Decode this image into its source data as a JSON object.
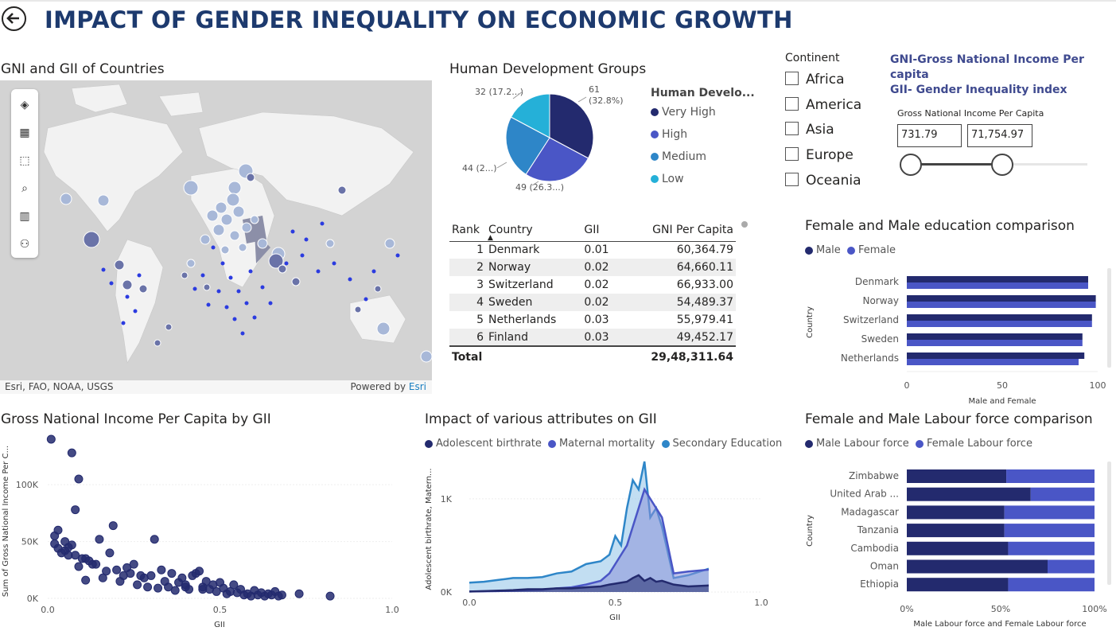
{
  "header": {
    "title": "IMPACT OF GENDER INEQUALITY ON ECONOMIC GROWTH"
  },
  "map": {
    "title": "GNI and GII of Countries",
    "attribution": "Esri, FAO, NOAA, USGS",
    "powered_by": "Powered by",
    "powered_brand": "Esri",
    "tools": [
      "layers-icon",
      "qr-icon",
      "select-rect-icon",
      "search-icon",
      "chart-icon",
      "person-icon"
    ]
  },
  "pie": {
    "title": "Human Development Groups",
    "legend_title": "Human Develo...",
    "slices": [
      {
        "label": "Very High",
        "value": 61,
        "display": "61",
        "pct": "(32.8%)",
        "color": "#232a6e"
      },
      {
        "label": "High",
        "value": 49,
        "display": "49 (26.3...)",
        "color": "#4a56c6"
      },
      {
        "label": "Medium",
        "value": 44,
        "display": "44 (2...)",
        "color": "#2e86c8"
      },
      {
        "label": "Low",
        "value": 32,
        "display": "32 (17.2...)",
        "color": "#25b0d8"
      }
    ]
  },
  "table": {
    "headers": [
      "Rank",
      "Country",
      "GII",
      "GNI Per Capita"
    ],
    "rows": [
      [
        "1",
        "Denmark",
        "0.01",
        "60,364.79"
      ],
      [
        "2",
        "Norway",
        "0.02",
        "64,660.11"
      ],
      [
        "3",
        "Switzerland",
        "0.02",
        "66,933.00"
      ],
      [
        "4",
        "Sweden",
        "0.02",
        "54,489.37"
      ],
      [
        "5",
        "Netherlands",
        "0.03",
        "55,979.41"
      ],
      [
        "6",
        "Finland",
        "0.03",
        "49,452.17"
      ]
    ],
    "total_label": "Total",
    "total_value": "29,48,311.64"
  },
  "slicer": {
    "title": "Continent",
    "items": [
      "Africa",
      "America",
      "Asia",
      "Europe",
      "Oceania"
    ]
  },
  "notes": {
    "line1": "GNI-Gross National Income Per capita",
    "line2": "GII- Gender Inequality index"
  },
  "range": {
    "label": "Gross National Income Per Capita",
    "min": "731.79",
    "max": "71,754.97",
    "fill_fraction": 0.76
  },
  "education": {
    "title": "Female and Male education comparison",
    "legend": [
      "Male",
      "Female"
    ],
    "ylabel": "Country",
    "xlabel": "Male and Female",
    "ticks": [
      "0",
      "50",
      "100"
    ]
  },
  "labour": {
    "title": "Female and Male Labour force comparison",
    "legend": [
      "Male Labour force",
      "Female Labour force"
    ],
    "ylabel": "Country",
    "xlabel": "Male Labour force and Female Labour force",
    "ticks": [
      "0%",
      "50%",
      "100%"
    ]
  },
  "scatter_text": {
    "title": "Gross National Income Per Capita by GII",
    "ylabel": "Sum of Gross National Income Per C...",
    "xlabel": "GII",
    "yticks": [
      "0K",
      "50K",
      "100K"
    ],
    "xticks": [
      "0.0",
      "0.5",
      "1.0"
    ]
  },
  "area_text": {
    "title": "Impact of various attributes on GII",
    "legend": [
      "Adolescent birthrate",
      "Maternal mortality",
      "Secondary  Education"
    ],
    "ylabel": "Adolescent birthrate, Matern...",
    "xlabel": "GII",
    "yticks": [
      "0K",
      "1K"
    ],
    "xticks": [
      "0.0",
      "0.5",
      "1.0"
    ]
  },
  "colors": {
    "dark": "#232a6e",
    "mid": "#4a56c6",
    "teal": "#2e86c8",
    "title": "#1d3a6e"
  },
  "chart_data": [
    {
      "type": "bar",
      "title": "Female and Male education comparison",
      "categories": [
        "Denmark",
        "Norway",
        "Switzerland",
        "Sweden",
        "Netherlands"
      ],
      "series": [
        {
          "name": "Male",
          "values": [
            95,
            99,
            97,
            92,
            93
          ]
        },
        {
          "name": "Female",
          "values": [
            95,
            99,
            97,
            92,
            90
          ]
        }
      ],
      "xlim": [
        0,
        100
      ]
    },
    {
      "type": "bar",
      "title": "Female and Male Labour force comparison",
      "categories": [
        "Zimbabwe",
        "United Arab ...",
        "Madagascar",
        "Tanzania",
        "Cambodia",
        "Oman",
        "Ethiopia"
      ],
      "series": [
        {
          "name": "Male Labour force",
          "values": [
            53,
            66,
            52,
            52,
            54,
            75,
            54
          ]
        },
        {
          "name": "Female Labour force",
          "values": [
            47,
            34,
            48,
            48,
            46,
            25,
            46
          ]
        }
      ],
      "xlim": [
        0,
        100
      ]
    },
    {
      "type": "scatter",
      "title": "Gross National Income Per Capita by GII",
      "x": [
        0.01,
        0.03,
        0.02,
        0.07,
        0.09,
        0.08,
        0.02,
        0.03,
        0.05,
        0.06,
        0.04,
        0.08,
        0.1,
        0.12,
        0.11,
        0.14,
        0.09,
        0.15,
        0.18,
        0.19,
        0.2,
        0.22,
        0.24,
        0.25,
        0.28,
        0.3,
        0.31,
        0.33,
        0.34,
        0.36,
        0.38,
        0.39,
        0.4,
        0.42,
        0.43,
        0.44,
        0.45,
        0.46,
        0.47,
        0.48,
        0.49,
        0.5,
        0.51,
        0.52,
        0.53,
        0.54,
        0.55,
        0.56,
        0.57,
        0.58,
        0.59,
        0.6,
        0.61,
        0.62,
        0.63,
        0.64,
        0.65,
        0.66,
        0.67,
        0.68,
        0.73,
        0.82,
        0.05,
        0.07,
        0.13,
        0.16,
        0.21,
        0.26,
        0.29,
        0.32,
        0.35,
        0.37,
        0.41,
        0.27,
        0.23,
        0.17,
        0.06,
        0.11,
        0.4,
        0.45
      ],
      "y": [
        140,
        60,
        55,
        128,
        105,
        78,
        48,
        44,
        42,
        45,
        40,
        38,
        35,
        33,
        35,
        30,
        28,
        52,
        40,
        64,
        25,
        20,
        22,
        30,
        18,
        20,
        52,
        25,
        15,
        22,
        14,
        18,
        12,
        20,
        22,
        24,
        10,
        15,
        8,
        12,
        6,
        14,
        9,
        4,
        6,
        12,
        5,
        8,
        3,
        4,
        2,
        7,
        3,
        5,
        2,
        4,
        3,
        6,
        2,
        3,
        4,
        2,
        50,
        47,
        30,
        18,
        15,
        12,
        10,
        9,
        10,
        7,
        8,
        20,
        27,
        24,
        38,
        16,
        10,
        8
      ],
      "xlim": [
        0,
        1.0
      ],
      "ylim": [
        0,
        140
      ]
    },
    {
      "type": "area",
      "title": "Impact of various attributes on GII",
      "x": [
        0.0,
        0.05,
        0.1,
        0.15,
        0.2,
        0.25,
        0.3,
        0.35,
        0.4,
        0.45,
        0.48,
        0.5,
        0.52,
        0.54,
        0.56,
        0.58,
        0.6,
        0.62,
        0.64,
        0.66,
        0.7,
        0.75,
        0.82
      ],
      "series": [
        {
          "name": "Adolescent birthrate",
          "values": [
            5,
            10,
            15,
            20,
            30,
            30,
            40,
            40,
            50,
            60,
            80,
            90,
            100,
            110,
            150,
            180,
            120,
            150,
            110,
            120,
            80,
            60,
            70
          ]
        },
        {
          "name": "Maternal mortality",
          "values": [
            5,
            8,
            10,
            15,
            20,
            25,
            40,
            50,
            80,
            120,
            200,
            300,
            400,
            500,
            700,
            900,
            1100,
            1000,
            900,
            800,
            200,
            220,
            240
          ]
        },
        {
          "name": "Secondary  Education",
          "values": [
            100,
            110,
            130,
            150,
            150,
            160,
            200,
            220,
            300,
            330,
            400,
            600,
            500,
            900,
            1200,
            1100,
            1400,
            800,
            900,
            700,
            150,
            180,
            250
          ]
        }
      ],
      "xlim": [
        0,
        1.0
      ],
      "ylim": [
        0,
        1400
      ]
    }
  ]
}
